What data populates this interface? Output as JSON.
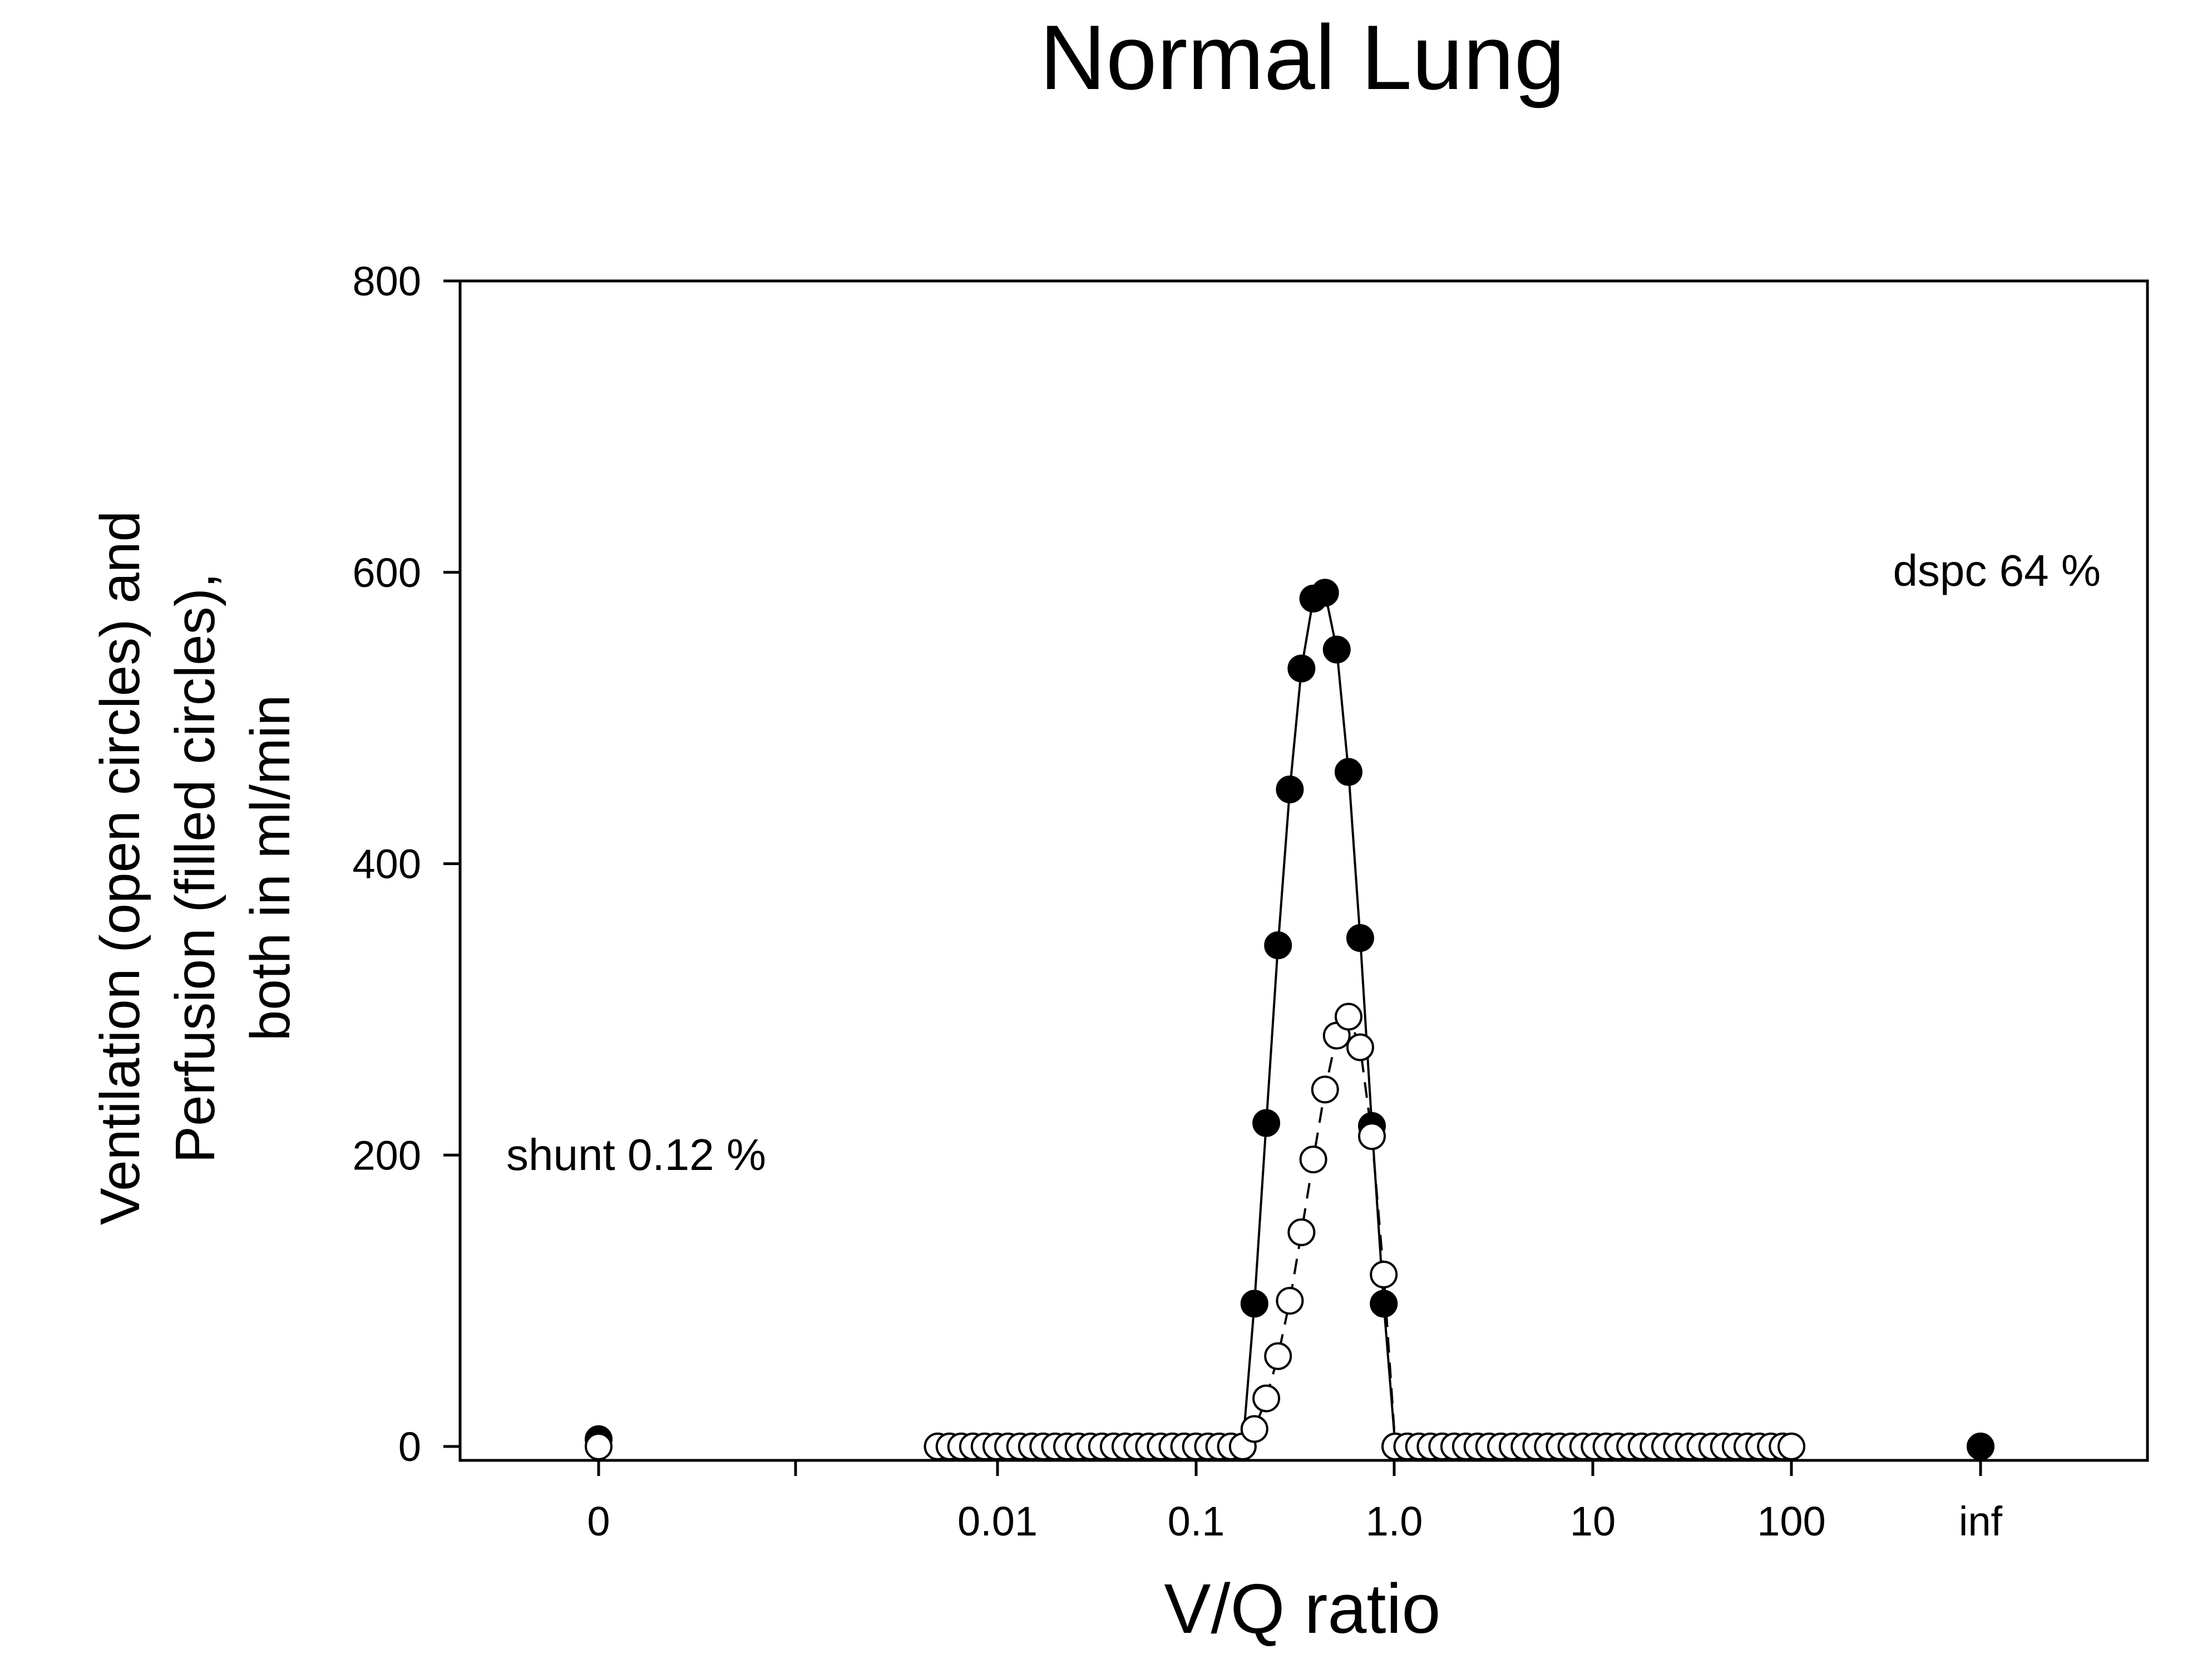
{
  "chart_data": {
    "type": "scatter",
    "title": "Normal Lung",
    "xlabel": "V/Q ratio",
    "ylabel_lines": [
      "Ventilation (open circles) and",
      "Perfusion (filled circles),",
      "both in ml/min"
    ],
    "x_scale": "log",
    "ylim": [
      0,
      800
    ],
    "yticks": [
      0,
      200,
      400,
      600,
      800
    ],
    "xtick_labels": [
      "0",
      "0.01",
      "0.1",
      "1.0",
      "10",
      "100",
      "inf"
    ],
    "annotations": {
      "shunt": "shunt 0.12 %",
      "dspc": "dspc 64 %"
    },
    "grid": false,
    "series": [
      {
        "style": "filled circles, solid line",
        "color": "#000000",
        "x": [
          0.005,
          0.00573,
          0.00656,
          0.00752,
          0.00861,
          0.00987,
          0.0113,
          0.013,
          0.0149,
          0.017,
          0.0195,
          0.0224,
          0.0256,
          0.0294,
          0.0336,
          0.0385,
          0.0441,
          0.0506,
          0.058,
          0.0664,
          0.0761,
          0.0872,
          0.0999,
          0.115,
          0.131,
          0.15,
          0.172,
          0.197,
          0.226,
          0.259,
          0.297,
          0.34,
          0.39,
          0.447,
          0.512,
          0.587,
          0.672,
          0.77,
          0.883,
          1.01,
          1.16,
          1.33,
          1.52,
          1.74,
          2.0,
          2.29,
          2.62,
          3.0,
          3.44,
          3.94,
          4.52,
          5.18,
          5.93,
          6.8,
          7.79,
          8.93,
          10.2,
          11.7,
          13.4,
          15.4,
          17.6,
          20.2,
          23.1,
          26.5,
          30.4,
          34.8,
          39.9,
          45.7,
          52.4,
          60.0,
          68.8,
          78.8,
          90.3,
          100
        ],
        "y": [
          0,
          0,
          0,
          0,
          0,
          0,
          0,
          0,
          0,
          0,
          0,
          0,
          0,
          0,
          0,
          0,
          0,
          0,
          0,
          0,
          0,
          0,
          0,
          0,
          0,
          0,
          0,
          98,
          222,
          344,
          451,
          534,
          582,
          586,
          547,
          463,
          349,
          220,
          98,
          0,
          0,
          0,
          0,
          0,
          0,
          0,
          0,
          0,
          0,
          0,
          0,
          0,
          0,
          0,
          0,
          0,
          0,
          0,
          0,
          0,
          0,
          0,
          0,
          0,
          0,
          0,
          0,
          0,
          0,
          0,
          0,
          0,
          0,
          0
        ],
        "special_points": [
          {
            "x_label": "0",
            "y": 5
          },
          {
            "x_label": "inf",
            "y": 0
          }
        ]
      },
      {
        "style": "open circles, dashed line",
        "color": "#000000",
        "x": [
          0.005,
          0.00573,
          0.00656,
          0.00752,
          0.00861,
          0.00987,
          0.0113,
          0.013,
          0.0149,
          0.017,
          0.0195,
          0.0224,
          0.0256,
          0.0294,
          0.0336,
          0.0385,
          0.0441,
          0.0506,
          0.058,
          0.0664,
          0.0761,
          0.0872,
          0.0999,
          0.115,
          0.131,
          0.15,
          0.172,
          0.197,
          0.226,
          0.259,
          0.297,
          0.34,
          0.39,
          0.447,
          0.512,
          0.587,
          0.672,
          0.77,
          0.883,
          1.01,
          1.16,
          1.33,
          1.52,
          1.74,
          2.0,
          2.29,
          2.62,
          3.0,
          3.44,
          3.94,
          4.52,
          5.18,
          5.93,
          6.8,
          7.79,
          8.93,
          10.2,
          11.7,
          13.4,
          15.4,
          17.6,
          20.2,
          23.1,
          26.5,
          30.4,
          34.8,
          39.9,
          45.7,
          52.4,
          60.0,
          68.8,
          78.8,
          90.3,
          100
        ],
        "y": [
          0,
          0,
          0,
          0,
          0,
          0,
          0,
          0,
          0,
          0,
          0,
          0,
          0,
          0,
          0,
          0,
          0,
          0,
          0,
          0,
          0,
          0,
          0,
          0,
          0,
          0,
          0,
          12,
          33,
          62,
          100,
          147,
          197,
          245,
          282,
          295,
          274,
          213,
          118,
          0,
          0,
          0,
          0,
          0,
          0,
          0,
          0,
          0,
          0,
          0,
          0,
          0,
          0,
          0,
          0,
          0,
          0,
          0,
          0,
          0,
          0,
          0,
          0,
          0,
          0,
          0,
          0,
          0,
          0,
          0,
          0,
          0,
          0,
          0
        ],
        "special_points": [
          {
            "x_label": "0",
            "y": 0
          }
        ]
      }
    ]
  }
}
